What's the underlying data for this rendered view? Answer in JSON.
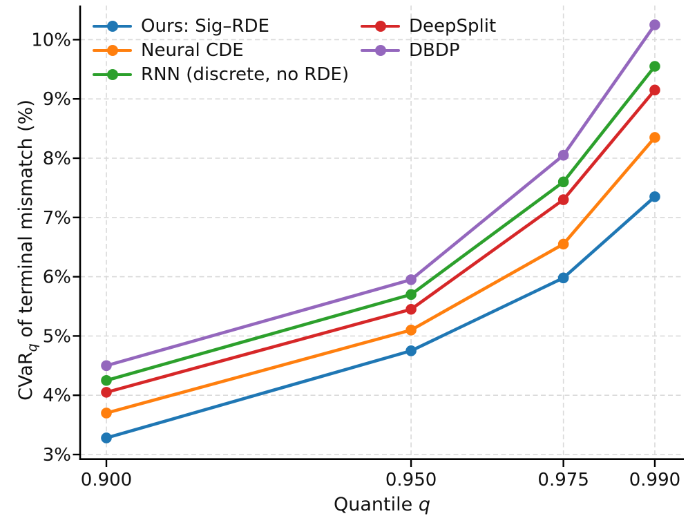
{
  "chart_data": {
    "type": "line",
    "title": "",
    "xlabel": {
      "text": "Quantile ",
      "italic": "q"
    },
    "ylabel": {
      "prefix": "CVaR",
      "sub": "q",
      "suffix": " of terminal mismatch (%)"
    },
    "x": [
      0.9,
      0.95,
      0.975,
      0.99
    ],
    "x_tick_labels": [
      "0.900",
      "0.950",
      "0.975",
      "0.990"
    ],
    "y_ticks": [
      3,
      4,
      5,
      6,
      7,
      8,
      9,
      10
    ],
    "y_tick_labels": [
      "3%",
      "4%",
      "5%",
      "6%",
      "7%",
      "8%",
      "9%",
      "10%"
    ],
    "xlim": [
      0.896,
      0.9945
    ],
    "ylim": [
      2.93,
      10.67
    ],
    "grid": "dashed",
    "legend": {
      "position": "upper left",
      "columns": 2,
      "frame": false
    },
    "series": [
      {
        "name": "Ours: Sig–RDE",
        "color": "#1f77b4",
        "values": [
          3.28,
          4.75,
          5.98,
          7.35
        ]
      },
      {
        "name": "Neural CDE",
        "color": "#ff7f0e",
        "values": [
          3.7,
          5.1,
          6.55,
          8.35
        ]
      },
      {
        "name": "RNN (discrete, no RDE)",
        "color": "#2ca02c",
        "values": [
          4.25,
          5.7,
          7.6,
          9.55
        ]
      },
      {
        "name": "DeepSplit",
        "color": "#d62728",
        "values": [
          4.05,
          5.45,
          7.3,
          9.15
        ]
      },
      {
        "name": "DBDP",
        "color": "#9467bd",
        "values": [
          4.5,
          5.95,
          8.05,
          10.25
        ]
      }
    ]
  }
}
